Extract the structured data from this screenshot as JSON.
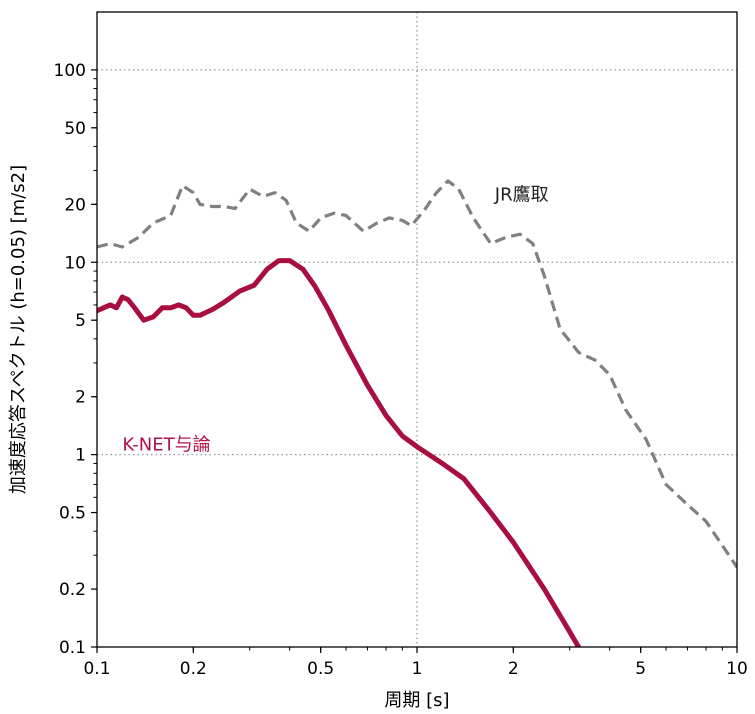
{
  "chart_data": {
    "type": "line",
    "xlabel": "周期 [s]",
    "ylabel": "加速度応答スペクトル (h=0.05) [m/s2]",
    "xscale": "log",
    "yscale": "log",
    "xlim": [
      0.1,
      10
    ],
    "ylim": [
      0.1,
      200
    ],
    "grid": "dotted lines at x=1 and y=1, 10, 100",
    "x_tick_labels": [
      "0.1",
      "0.2",
      "0.5",
      "1",
      "2",
      "5",
      "10"
    ],
    "y_tick_labels": [
      "0.1",
      "0.2",
      "0.5",
      "1",
      "2",
      "5",
      "10",
      "20",
      "50",
      "100"
    ],
    "annotations": [
      {
        "text": "JR鷹取",
        "color": "#222222",
        "x": 1.75,
        "y": 21
      },
      {
        "text": "K-NET与論",
        "color": "#b01445",
        "x": 0.12,
        "y": 1.05
      }
    ],
    "series": [
      {
        "annotation": "JR鷹取",
        "color": "#808080",
        "style": "dashed",
        "x": [
          0.1,
          0.11,
          0.12,
          0.135,
          0.15,
          0.17,
          0.185,
          0.2,
          0.21,
          0.23,
          0.25,
          0.27,
          0.3,
          0.33,
          0.36,
          0.39,
          0.42,
          0.46,
          0.5,
          0.55,
          0.6,
          0.68,
          0.75,
          0.82,
          0.9,
          0.96,
          1.05,
          1.15,
          1.25,
          1.35,
          1.5,
          1.7,
          1.9,
          2.1,
          2.3,
          2.5,
          2.8,
          3.2,
          3.6,
          4.0,
          4.5,
          5.2,
          6,
          7,
          8,
          10
        ],
        "values": [
          12,
          12.5,
          12,
          13.5,
          16,
          17.5,
          25,
          23,
          20,
          19.5,
          19.5,
          19,
          24,
          22,
          23,
          21,
          16,
          14.5,
          17,
          18,
          17.5,
          14.5,
          16,
          17,
          16.5,
          15.5,
          18.5,
          23,
          26.5,
          24,
          17,
          12.5,
          13.5,
          14,
          12.5,
          8.5,
          4.5,
          3.4,
          3.1,
          2.6,
          1.7,
          1.2,
          0.7,
          0.55,
          0.45,
          0.26
        ]
      },
      {
        "annotation": "K-NET与論",
        "color": "#a80f3f",
        "style": "solid",
        "x": [
          0.1,
          0.11,
          0.115,
          0.12,
          0.125,
          0.13,
          0.14,
          0.15,
          0.16,
          0.17,
          0.18,
          0.19,
          0.2,
          0.21,
          0.23,
          0.25,
          0.28,
          0.31,
          0.34,
          0.37,
          0.4,
          0.44,
          0.48,
          0.53,
          0.6,
          0.7,
          0.8,
          0.9,
          1.0,
          1.2,
          1.4,
          1.7,
          2.0,
          2.5,
          3.0,
          3.2
        ],
        "values": [
          5.6,
          6.0,
          5.8,
          6.6,
          6.4,
          5.9,
          5.0,
          5.2,
          5.8,
          5.8,
          6.0,
          5.8,
          5.3,
          5.3,
          5.7,
          6.2,
          7.1,
          7.6,
          9.2,
          10.2,
          10.2,
          9.2,
          7.5,
          5.6,
          3.7,
          2.3,
          1.6,
          1.25,
          1.1,
          0.9,
          0.75,
          0.5,
          0.35,
          0.2,
          0.12,
          0.1
        ]
      }
    ]
  }
}
